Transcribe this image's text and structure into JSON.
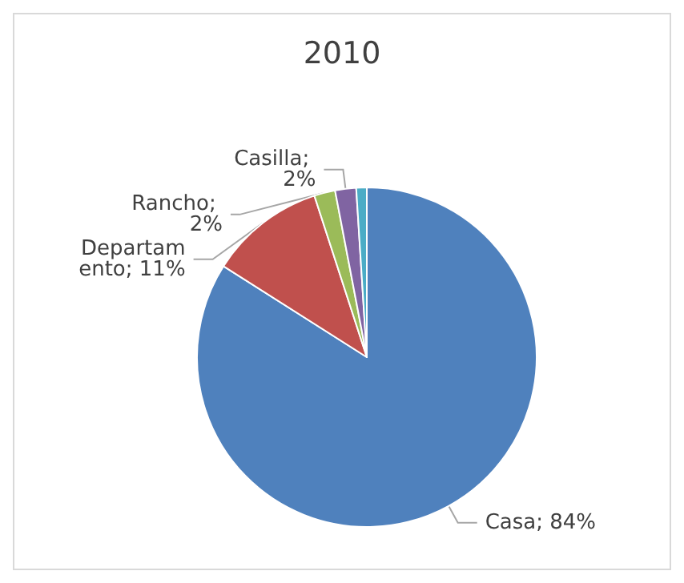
{
  "chart_data": {
    "type": "pie",
    "title": "2010",
    "categories": [
      null,
      null,
      null,
      null,
      null
    ],
    "values": [
      84,
      11,
      2,
      2,
      1
    ],
    "colors": [
      "#4f81bd",
      "#c0504d",
      "#9bbb59",
      "#8064a2",
      "#4bacc6"
    ],
    "value_labels": [
      "Casa; 84%",
      "Departamento; 11%",
      "Rancho; 2%",
      "Casilla; 2%",
      null
    ]
  }
}
